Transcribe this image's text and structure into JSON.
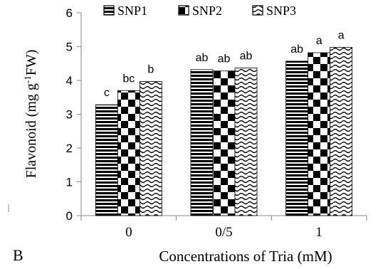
{
  "chart_data": {
    "type": "bar",
    "panel_label": "B",
    "xlabel": "Concentrations of  Tria (mM)",
    "ylabel": {
      "prefix": "Flavonoid (mg g",
      "superscript": "-1",
      "suffix": "FW)"
    },
    "ylim": [
      0,
      6
    ],
    "yticks": [
      0,
      1,
      2,
      3,
      4,
      5,
      6
    ],
    "categories": [
      "0",
      "0/5",
      "1"
    ],
    "series": [
      {
        "name": "SNP1",
        "pattern": "horizontal-stripes",
        "values": [
          3.28,
          4.32,
          4.57
        ]
      },
      {
        "name": "SNP2",
        "pattern": "checkerboard",
        "values": [
          3.7,
          4.28,
          4.82
        ]
      },
      {
        "name": "SNP3",
        "pattern": "waves",
        "values": [
          3.97,
          4.37,
          4.98
        ]
      }
    ],
    "significance_letters": [
      [
        "c",
        "bc",
        "b"
      ],
      [
        "ab",
        "ab",
        "ab"
      ],
      [
        "ab",
        "a",
        "a"
      ]
    ],
    "legend_position": "top",
    "grid": false
  }
}
